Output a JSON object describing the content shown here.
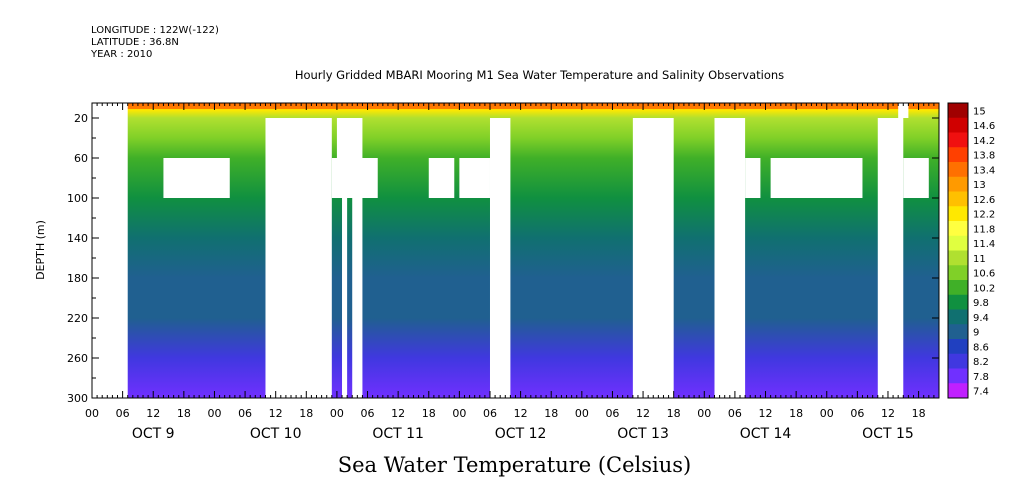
{
  "header": {
    "longitude": "LONGITUDE : 122W(-122)",
    "latitude": "LATITUDE : 36.8N",
    "year": "YEAR : 2010"
  },
  "chart_data": {
    "type": "heatmap",
    "title": "Hourly Gridded MBARI Mooring M1 Sea Water Temperature and Salinity Observations",
    "xlabel": "Sea Water Temperature (Celsius)",
    "ylabel": "DEPTH (m)",
    "ylim": [
      300,
      5
    ],
    "y_ticks": [
      20,
      60,
      100,
      140,
      180,
      220,
      260,
      300
    ],
    "x_hour_ticks": [
      "00",
      "06",
      "12",
      "18",
      "00",
      "06",
      "12",
      "18",
      "00",
      "06",
      "12",
      "18",
      "00",
      "06",
      "12",
      "18",
      "00",
      "06",
      "12",
      "18",
      "00",
      "06",
      "12",
      "18",
      "00",
      "06",
      "12",
      "18"
    ],
    "x_day_labels": [
      "OCT  9",
      "OCT 10",
      "OCT 11",
      "OCT 12",
      "OCT 13",
      "OCT 14",
      "OCT 15"
    ],
    "time_range_hours": [
      0,
      166
    ],
    "colorbar_levels": [
      "15",
      "14.6",
      "14.2",
      "13.8",
      "13.4",
      "13",
      "12.6",
      "12.2",
      "11.8",
      "11.4",
      "11",
      "10.6",
      "10.2",
      "9.8",
      "9.4",
      "9",
      "8.6",
      "8.2",
      "7.8",
      "7.4"
    ],
    "colorbar_colors": [
      "#a00000",
      "#d00000",
      "#f01010",
      "#ff4000",
      "#ff7000",
      "#ff9a00",
      "#ffc000",
      "#ffe800",
      "#ffff40",
      "#e0ff40",
      "#b0e030",
      "#80d028",
      "#40b028",
      "#109040",
      "#107070",
      "#206090",
      "#2040c0",
      "#4038e0",
      "#7030ff",
      "#c020ff"
    ],
    "temperature_by_depth": [
      {
        "depth": 5,
        "temp": 13.4
      },
      {
        "depth": 12,
        "temp": 12.2
      },
      {
        "depth": 20,
        "temp": 11.2
      },
      {
        "depth": 40,
        "temp": 10.8
      },
      {
        "depth": 60,
        "temp": 10.5
      },
      {
        "depth": 100,
        "temp": 10.0
      },
      {
        "depth": 140,
        "temp": 9.6
      },
      {
        "depth": 180,
        "temp": 9.3
      },
      {
        "depth": 220,
        "temp": 9.0
      },
      {
        "depth": 260,
        "temp": 8.5
      },
      {
        "depth": 300,
        "temp": 7.8
      }
    ],
    "missing_data_blocks": [
      {
        "t0": 0,
        "t1": 7,
        "d0": 5,
        "d1": 300
      },
      {
        "t0": 14,
        "t1": 27,
        "d0": 60,
        "d1": 100
      },
      {
        "t0": 34,
        "t1": 47,
        "d0": 20,
        "d1": 300
      },
      {
        "t0": 47,
        "t1": 49,
        "d0": 60,
        "d1": 100
      },
      {
        "t0": 48,
        "t1": 52,
        "d0": 20,
        "d1": 100
      },
      {
        "t0": 49,
        "t1": 50,
        "d0": 20,
        "d1": 300
      },
      {
        "t0": 51,
        "t1": 53,
        "d0": 20,
        "d1": 300
      },
      {
        "t0": 52,
        "t1": 56,
        "d0": 60,
        "d1": 100
      },
      {
        "t0": 66,
        "t1": 71,
        "d0": 60,
        "d1": 100
      },
      {
        "t0": 72,
        "t1": 78,
        "d0": 60,
        "d1": 100
      },
      {
        "t0": 78,
        "t1": 82,
        "d0": 20,
        "d1": 300
      },
      {
        "t0": 106,
        "t1": 114,
        "d0": 20,
        "d1": 300
      },
      {
        "t0": 122,
        "t1": 128,
        "d0": 20,
        "d1": 300
      },
      {
        "t0": 128,
        "t1": 131,
        "d0": 60,
        "d1": 100
      },
      {
        "t0": 133,
        "t1": 151,
        "d0": 60,
        "d1": 100
      },
      {
        "t0": 154,
        "t1": 159,
        "d0": 20,
        "d1": 300
      },
      {
        "t0": 158,
        "t1": 160,
        "d0": 5,
        "d1": 20
      },
      {
        "t0": 159,
        "t1": 164,
        "d0": 60,
        "d1": 100
      }
    ]
  }
}
